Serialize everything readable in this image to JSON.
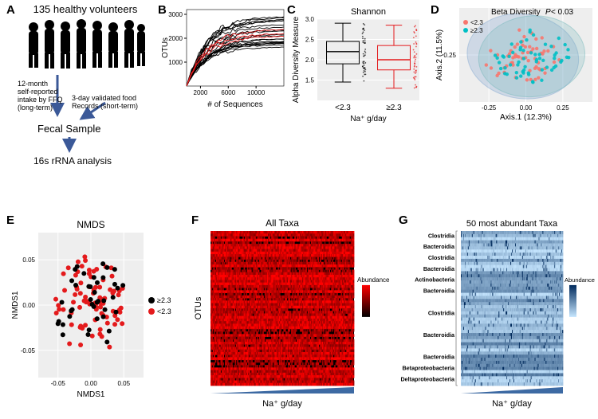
{
  "panelA": {
    "label": "A",
    "title": "135 healthy volunteers",
    "flow": [
      "12-month self-reported intake by FFQ (long-term)",
      "3-day validated food Records (short-term)",
      "Fecal Sample",
      "16s rRNA analysis"
    ],
    "silhouette_color": "#000000",
    "arrow_color": "#3b5998"
  },
  "panelB": {
    "label": "B",
    "type": "rarefaction",
    "xlabel": "# of Sequences",
    "ylabel": "OTUs",
    "xlim": [
      0,
      14000
    ],
    "xticks": [
      2000,
      6000,
      10000
    ],
    "ylim": [
      0,
      3200
    ],
    "yticks": [
      1000,
      2000,
      3000
    ],
    "n_curves_black": 20,
    "n_curves_red": 3,
    "line_color_black": "#000000",
    "line_color_red": "#e41a1c",
    "background_color": "#ffffff"
  },
  "panelC": {
    "label": "C",
    "type": "boxplot",
    "title": "Shannon",
    "ylabel": "Alpha Diversity Measure",
    "xlabel": "Na⁺ g/day",
    "categories": [
      "<2.3",
      "≥2.3"
    ],
    "ylim": [
      1.0,
      3.0
    ],
    "yticks": [
      1.5,
      2.0,
      2.5,
      3.0
    ],
    "boxes": [
      {
        "median": 2.2,
        "q1": 1.9,
        "q3": 2.45,
        "lw": 1.45,
        "uw": 2.9,
        "color": "#000000"
      },
      {
        "median": 2.0,
        "q1": 1.75,
        "q3": 2.35,
        "lw": 1.3,
        "uw": 2.85,
        "color": "#e41a1c"
      }
    ],
    "background_color": "#eeeeee",
    "grid_color": "#ffffff"
  },
  "panelD": {
    "label": "D",
    "type": "scatter-pcoa",
    "title": "Beta Diversity P < 0.03",
    "xlabel": "Axis.1 (12.3%)",
    "ylabel": "Axis.2 (11.5%)",
    "xlim": [
      -0.45,
      0.45
    ],
    "ylim": [
      -0.1,
      0.6
    ],
    "xticks": [
      -0.25,
      0.0,
      0.25
    ],
    "yticks": [
      0.25
    ],
    "legend": [
      {
        "label": "<2.3",
        "color": "#f8766d"
      },
      {
        "label": "≥2.3",
        "color": "#00bfc4"
      }
    ],
    "ellipse_color_1": "#7da3cf",
    "ellipse_color_2": "#6fb5b9",
    "background_color": "#eeeeee",
    "grid_color": "#ffffff",
    "n_points_each": 60
  },
  "panelE": {
    "label": "E",
    "type": "scatter-nmds",
    "title": "NMDS",
    "xlabel": "NMDS1",
    "ylabel": "NMDS1",
    "xlim": [
      -0.08,
      0.08
    ],
    "ylim": [
      -0.08,
      0.08
    ],
    "xticks": [
      -0.05,
      0.0,
      0.05
    ],
    "yticks": [
      -0.05,
      0.0,
      0.05
    ],
    "legend": [
      {
        "label": "≥2.3",
        "color": "#000000"
      },
      {
        "label": "<2.3",
        "color": "#e41a1c"
      }
    ],
    "background_color": "#eeeeee",
    "grid_color": "#ffffff",
    "n_red": 85,
    "n_black": 40
  },
  "panelF": {
    "label": "F",
    "type": "heatmap",
    "title": "All Taxa",
    "ylabel": "OTUs",
    "xlabel": "Na⁺ g/day",
    "rows": 60,
    "cols": 130,
    "colorscale": [
      "#000000",
      "#ff0000"
    ],
    "legend_title": "Abundance",
    "triangle_color": "#3d6aa3"
  },
  "panelG": {
    "label": "G",
    "type": "heatmap",
    "title": "50 most abundant Taxa",
    "xlabel": "Na⁺ g/day",
    "rows": 50,
    "cols": 130,
    "row_labels": [
      "Clostridia",
      "Bacteroidia",
      "Clostridia",
      "Bacteroidia",
      "Actinobacteria",
      "Bacteroidia",
      "",
      "Clostridia",
      "",
      "Bacteroidia",
      "",
      "Bacteroidia",
      "Betaproteobacteria",
      "Deltaproteobacteria"
    ],
    "colorscale": [
      "#c6e6ff",
      "#002a5c"
    ],
    "legend_title": "Abundance",
    "triangle_color": "#3d6aa3"
  }
}
